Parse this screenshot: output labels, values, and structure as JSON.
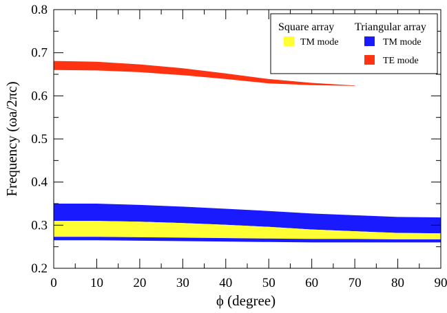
{
  "chart_data": {
    "type": "area",
    "xlabel": "ϕ (degree)",
    "ylabel": "Frequency (ωa/2πc)",
    "xlim": [
      0,
      90
    ],
    "ylim": [
      0.2,
      0.8
    ],
    "x_ticks": [
      "0",
      "10",
      "20",
      "30",
      "40",
      "50",
      "60",
      "70",
      "80",
      "90"
    ],
    "y_ticks": [
      "0.2",
      "0.3",
      "0.4",
      "0.5",
      "0.6",
      "0.7",
      "0.8"
    ],
    "grid": false,
    "legend_position": "top-right",
    "legend_groups": [
      {
        "heading": "Square array",
        "entries": [
          "TM mode"
        ]
      },
      {
        "heading": "Triangular array",
        "entries": [
          "TM mode",
          "TE mode"
        ]
      }
    ],
    "series": [
      {
        "group": "Triangular array",
        "name": "TM mode",
        "color": "#1a1aff",
        "x": [
          0,
          10,
          20,
          30,
          40,
          50,
          60,
          70,
          80,
          90
        ],
        "lower": [
          0.31,
          0.31,
          0.308,
          0.305,
          0.301,
          0.296,
          0.29,
          0.286,
          0.282,
          0.281
        ],
        "upper": [
          0.35,
          0.35,
          0.347,
          0.343,
          0.338,
          0.333,
          0.327,
          0.323,
          0.319,
          0.318
        ]
      },
      {
        "group": "Square array",
        "name": "TM mode",
        "color": "#ffff33",
        "x": [
          0,
          10,
          20,
          30,
          40,
          50,
          60,
          70,
          80,
          90
        ],
        "lower": [
          0.273,
          0.273,
          0.272,
          0.271,
          0.27,
          0.269,
          0.268,
          0.268,
          0.267,
          0.267
        ],
        "upper": [
          0.31,
          0.31,
          0.308,
          0.305,
          0.301,
          0.296,
          0.29,
          0.286,
          0.282,
          0.281
        ]
      },
      {
        "group": "Triangular array",
        "name": "TM mode",
        "color": "#1a1aff",
        "x": [
          0,
          10,
          20,
          30,
          40,
          50,
          60,
          70,
          80,
          90
        ],
        "lower": [
          0.265,
          0.265,
          0.264,
          0.263,
          0.262,
          0.261,
          0.26,
          0.26,
          0.26,
          0.26
        ],
        "upper": [
          0.273,
          0.273,
          0.272,
          0.271,
          0.27,
          0.269,
          0.268,
          0.268,
          0.267,
          0.267
        ]
      },
      {
        "group": "Triangular array",
        "name": "TE mode",
        "color": "#ff3311",
        "x": [
          0,
          10,
          20,
          30,
          40,
          50,
          60,
          70
        ],
        "lower": [
          0.66,
          0.659,
          0.655,
          0.648,
          0.639,
          0.629,
          0.625,
          0.623
        ],
        "upper": [
          0.681,
          0.679,
          0.673,
          0.664,
          0.652,
          0.639,
          0.63,
          0.624
        ]
      }
    ]
  }
}
